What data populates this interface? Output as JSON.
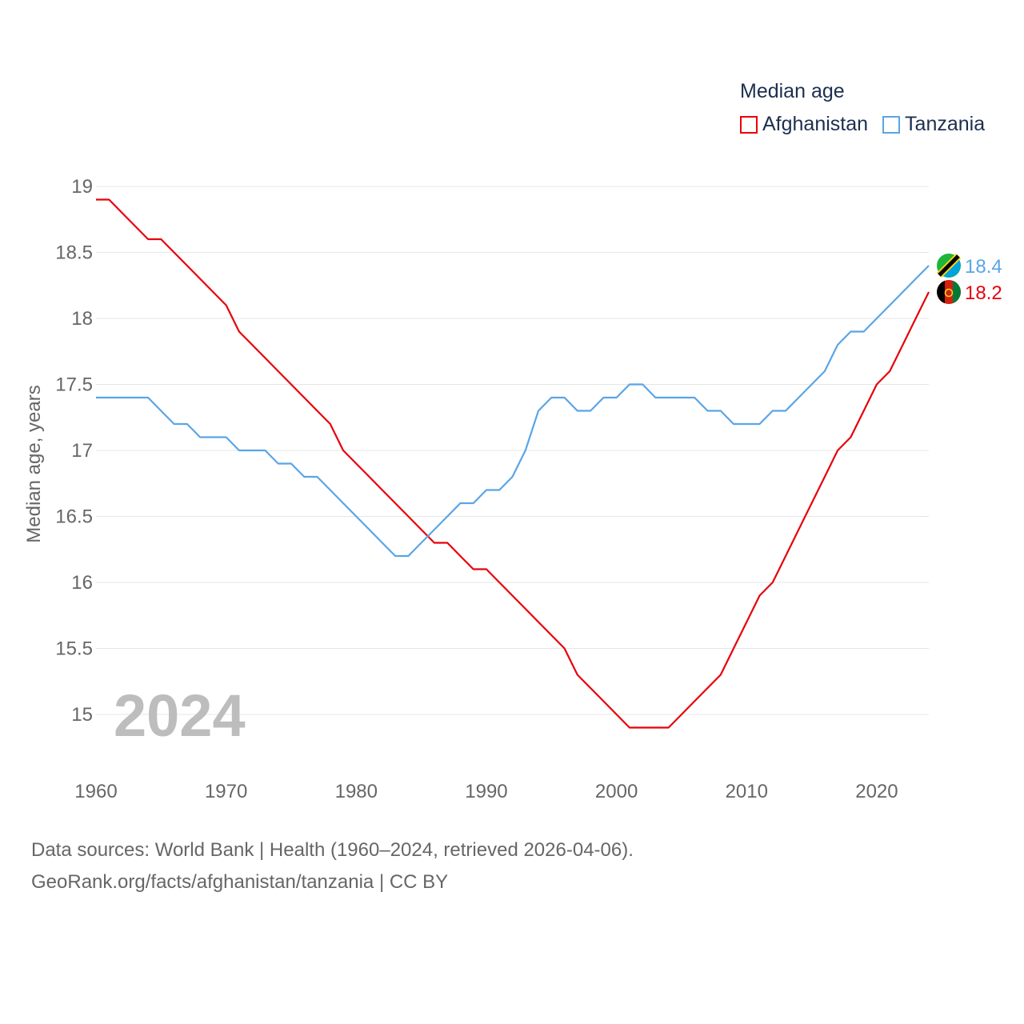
{
  "legend": {
    "title": "Median age",
    "items": [
      {
        "label": "Afghanistan",
        "color": "#e8000b"
      },
      {
        "label": "Tanzania",
        "color": "#5aa5e6"
      }
    ]
  },
  "footer": {
    "line1": "Data sources: World Bank | Health (1960–2024, retrieved 2026-04-06).",
    "line2": "GeoRank.org/facts/afghanistan/tanzania | CC BY"
  },
  "chart_data": {
    "type": "line",
    "title": "Median age",
    "xlabel": "",
    "ylabel": "Median age, years",
    "year_label": "2024",
    "xlim": [
      1960,
      2024
    ],
    "ylim": [
      14.6,
      19
    ],
    "yticks": [
      15,
      15.5,
      16,
      16.5,
      17,
      17.5,
      18,
      18.5,
      19
    ],
    "ytick_labels": [
      "15",
      "15.5",
      "16",
      "16.5",
      "17",
      "17.5",
      "18",
      "18.5",
      "19"
    ],
    "xticks": [
      1960,
      1970,
      1980,
      1990,
      2000,
      2010,
      2020
    ],
    "xtick_labels": [
      "1960",
      "1970",
      "1980",
      "1990",
      "2000",
      "2010",
      "2020"
    ],
    "grid": true,
    "x": [
      1960,
      1961,
      1962,
      1963,
      1964,
      1965,
      1966,
      1967,
      1968,
      1969,
      1970,
      1971,
      1972,
      1973,
      1974,
      1975,
      1976,
      1977,
      1978,
      1979,
      1980,
      1981,
      1982,
      1983,
      1984,
      1985,
      1986,
      1987,
      1988,
      1989,
      1990,
      1991,
      1992,
      1993,
      1994,
      1995,
      1996,
      1997,
      1998,
      1999,
      2000,
      2001,
      2002,
      2003,
      2004,
      2005,
      2006,
      2007,
      2008,
      2009,
      2010,
      2011,
      2012,
      2013,
      2014,
      2015,
      2016,
      2017,
      2018,
      2019,
      2020,
      2021,
      2022,
      2023,
      2024
    ],
    "series": [
      {
        "name": "Afghanistan",
        "color": "#e8000b",
        "end_label": "18.2",
        "values": [
          18.9,
          18.9,
          18.8,
          18.7,
          18.6,
          18.6,
          18.5,
          18.4,
          18.3,
          18.2,
          18.1,
          17.9,
          17.8,
          17.7,
          17.6,
          17.5,
          17.4,
          17.3,
          17.2,
          17.0,
          16.9,
          16.8,
          16.7,
          16.6,
          16.5,
          16.4,
          16.3,
          16.3,
          16.2,
          16.1,
          16.1,
          16.0,
          15.9,
          15.8,
          15.7,
          15.6,
          15.5,
          15.3,
          15.2,
          15.1,
          15.0,
          14.9,
          14.9,
          14.9,
          14.9,
          15.0,
          15.1,
          15.2,
          15.3,
          15.5,
          15.7,
          15.9,
          16.0,
          16.2,
          16.4,
          16.6,
          16.8,
          17.0,
          17.1,
          17.3,
          17.5,
          17.6,
          17.8,
          18.0,
          18.2
        ]
      },
      {
        "name": "Tanzania",
        "color": "#5aa5e6",
        "end_label": "18.4",
        "values": [
          17.4,
          17.4,
          17.4,
          17.4,
          17.4,
          17.3,
          17.2,
          17.2,
          17.1,
          17.1,
          17.1,
          17.0,
          17.0,
          17.0,
          16.9,
          16.9,
          16.8,
          16.8,
          16.7,
          16.6,
          16.5,
          16.4,
          16.3,
          16.2,
          16.2,
          16.3,
          16.4,
          16.5,
          16.6,
          16.6,
          16.7,
          16.7,
          16.8,
          17.0,
          17.3,
          17.4,
          17.4,
          17.3,
          17.3,
          17.4,
          17.4,
          17.5,
          17.5,
          17.4,
          17.4,
          17.4,
          17.4,
          17.3,
          17.3,
          17.2,
          17.2,
          17.2,
          17.3,
          17.3,
          17.4,
          17.5,
          17.6,
          17.8,
          17.9,
          17.9,
          18.0,
          18.1,
          18.2,
          18.3,
          18.4
        ]
      }
    ]
  }
}
